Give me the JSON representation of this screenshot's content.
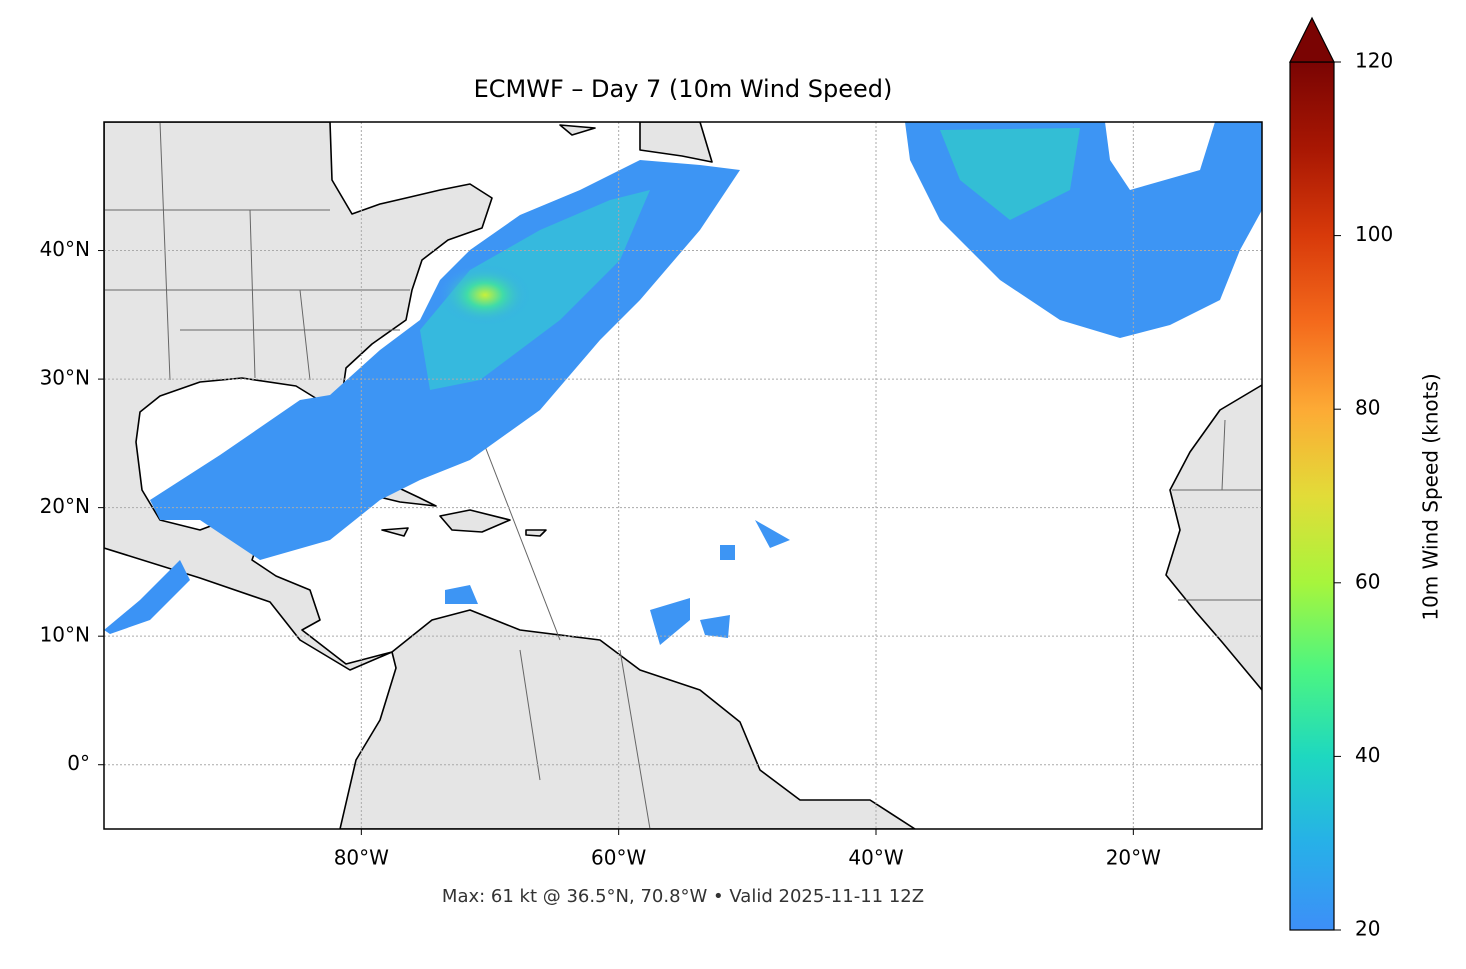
{
  "chart_data": {
    "type": "map",
    "title": "ECMWF – Day 7 (10m Wind Speed)",
    "subtitle": "Max: 61 kt @ 36.5°N, 70.8°W • Valid 2025-11-11 12Z",
    "xlim": [
      -100,
      -10
    ],
    "ylim": [
      -5,
      50
    ],
    "xticks": [
      {
        "value": -80,
        "label": "80°W"
      },
      {
        "value": -60,
        "label": "60°W"
      },
      {
        "value": -40,
        "label": "40°W"
      },
      {
        "value": -20,
        "label": "20°W"
      }
    ],
    "yticks": [
      {
        "value": 0,
        "label": "0°"
      },
      {
        "value": 10,
        "label": "10°N"
      },
      {
        "value": 20,
        "label": "20°N"
      },
      {
        "value": 30,
        "label": "30°N"
      },
      {
        "value": 40,
        "label": "40°N"
      }
    ],
    "grid": true,
    "colorbar": {
      "label": "10m Wind Speed (knots)",
      "lim": [
        20,
        120
      ],
      "ticks": [
        20,
        40,
        60,
        80,
        100,
        120
      ],
      "extend": "max"
    }
  }
}
